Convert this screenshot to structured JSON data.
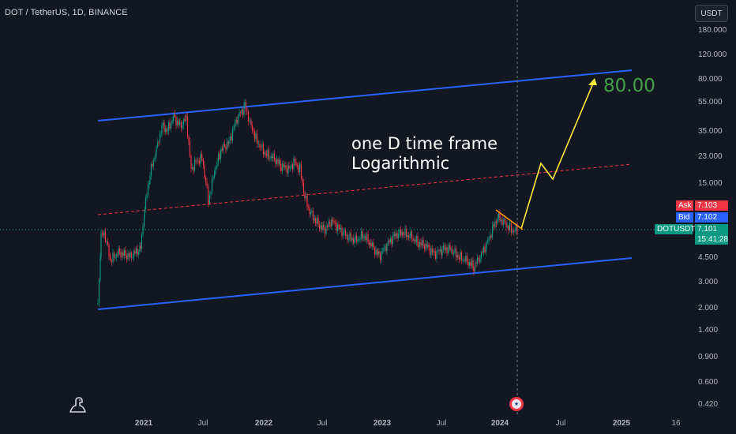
{
  "header": {
    "symbol_title": "DOT / TetherUS, 1D, BINANCE",
    "currency_button": "USDT"
  },
  "annotations": {
    "line1": "one D time frame",
    "line2": "Logarithmic",
    "target": "80.00"
  },
  "price_axis": {
    "ticks": [
      "180.000",
      "120.000",
      "80.000",
      "55.000",
      "35.000",
      "23.000",
      "15.000",
      "4.500",
      "3.000",
      "2.000",
      "1.400",
      "0.900",
      "0.600",
      "0.420"
    ],
    "ask_label": "Ask",
    "ask_value": "7.103",
    "bid_label": "Bid",
    "bid_value": "7.102",
    "symbol_tag": "DOTUSDT",
    "last_price": "7.101",
    "countdown": "15:41:28"
  },
  "time_axis": {
    "labels": [
      {
        "text": "2021",
        "kind": "year"
      },
      {
        "text": "Jul",
        "kind": "month"
      },
      {
        "text": "2022",
        "kind": "year"
      },
      {
        "text": "Jul",
        "kind": "month"
      },
      {
        "text": "2023",
        "kind": "year"
      },
      {
        "text": "Jul",
        "kind": "month"
      },
      {
        "text": "2024",
        "kind": "year"
      },
      {
        "text": "Jul",
        "kind": "month"
      },
      {
        "text": "2025",
        "kind": "year"
      },
      {
        "text": "16",
        "kind": "month"
      }
    ]
  },
  "colors": {
    "background": "#131722",
    "channel_line": "#2962ff",
    "mid_line": "#f23645",
    "projection": "#ffeb3b",
    "ask": "#f23645",
    "bid": "#2962ff",
    "last": "#089981",
    "candle_up": "#089981",
    "candle_down": "#f23645"
  },
  "icons": {
    "logo": "tradingview-dino-icon",
    "event": "us-flag-event-icon"
  }
}
